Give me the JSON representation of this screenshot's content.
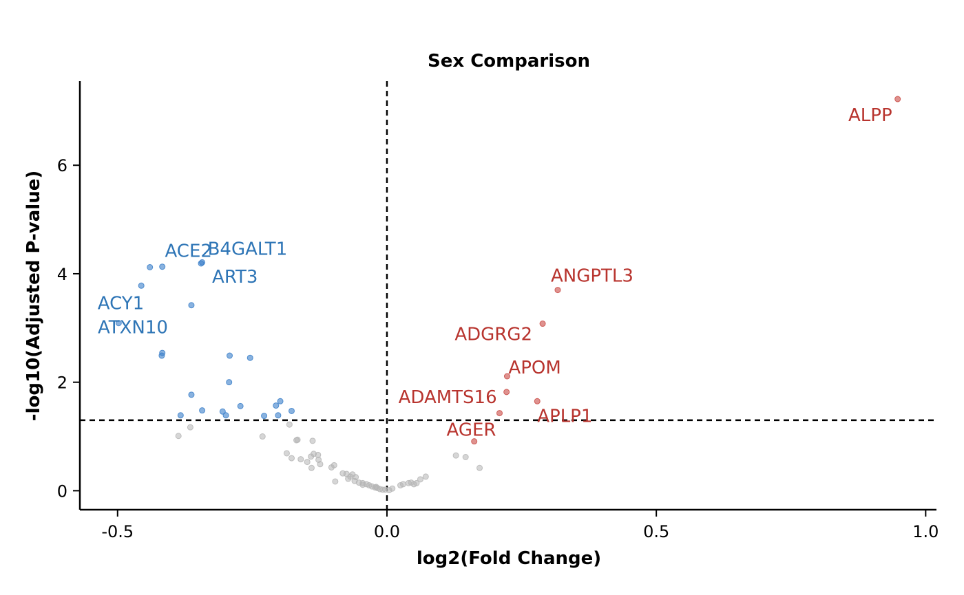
{
  "chart_data": {
    "type": "scatter",
    "title": "Sex Comparison",
    "xlabel": "log2(Fold Change)",
    "ylabel": "-log10(Adjusted P-value)",
    "xlim": [
      -0.57,
      1.02
    ],
    "ylim": [
      -0.35,
      7.55
    ],
    "xticks": [
      -0.5,
      0.0,
      0.5,
      1.0
    ],
    "xtick_labels": [
      "-0.5",
      "0.0",
      "0.5",
      "1.0"
    ],
    "yticks": [
      0,
      2,
      4,
      6
    ],
    "ytick_labels": [
      "0",
      "2",
      "4",
      "6"
    ],
    "thresholds": {
      "x": 0.0,
      "y": 1.3
    },
    "colors": {
      "down": "#3a7fc9",
      "up": "#c94a44",
      "ns": "#b5b5b5",
      "down_label": "#2e75b6",
      "up_label": "#b8342e"
    },
    "series": [
      {
        "status": "up",
        "points": [
          [
            0.948,
            7.22
          ],
          [
            0.317,
            3.7
          ],
          [
            0.289,
            3.08
          ],
          [
            0.223,
            2.11
          ],
          [
            0.222,
            1.82
          ],
          [
            0.279,
            1.65
          ],
          [
            0.209,
            1.43
          ],
          [
            0.162,
            0.91
          ]
        ]
      },
      {
        "status": "down",
        "points": [
          [
            -0.44,
            4.12
          ],
          [
            -0.417,
            4.13
          ],
          [
            -0.343,
            4.21
          ],
          [
            -0.345,
            4.19
          ],
          [
            -0.456,
            3.78
          ],
          [
            -0.363,
            3.42
          ],
          [
            -0.498,
            3.09
          ],
          [
            -0.417,
            2.54
          ],
          [
            -0.418,
            2.49
          ],
          [
            -0.292,
            2.49
          ],
          [
            -0.254,
            2.45
          ],
          [
            -0.293,
            2.0
          ],
          [
            -0.363,
            1.77
          ],
          [
            -0.198,
            1.65
          ],
          [
            -0.206,
            1.57
          ],
          [
            -0.272,
            1.56
          ],
          [
            -0.343,
            1.48
          ],
          [
            -0.177,
            1.47
          ],
          [
            -0.305,
            1.46
          ],
          [
            -0.383,
            1.39
          ],
          [
            -0.299,
            1.39
          ],
          [
            -0.228,
            1.38
          ],
          [
            -0.202,
            1.39
          ]
        ]
      },
      {
        "status": "ns",
        "points": [
          [
            -0.365,
            1.17
          ],
          [
            -0.387,
            1.01
          ],
          [
            -0.231,
            1.0
          ],
          [
            -0.181,
            1.22
          ],
          [
            -0.168,
            0.93
          ],
          [
            -0.166,
            0.94
          ],
          [
            -0.138,
            0.92
          ],
          [
            -0.186,
            0.69
          ],
          [
            -0.16,
            0.58
          ],
          [
            -0.141,
            0.63
          ],
          [
            -0.136,
            0.68
          ],
          [
            -0.128,
            0.66
          ],
          [
            -0.127,
            0.57
          ],
          [
            -0.124,
            0.49
          ],
          [
            -0.14,
            0.42
          ],
          [
            -0.103,
            0.43
          ],
          [
            -0.098,
            0.47
          ],
          [
            -0.148,
            0.53
          ],
          [
            -0.177,
            0.6
          ],
          [
            -0.082,
            0.32
          ],
          [
            -0.075,
            0.31
          ],
          [
            -0.068,
            0.26
          ],
          [
            -0.058,
            0.25
          ],
          [
            -0.06,
            0.18
          ],
          [
            -0.052,
            0.15
          ],
          [
            -0.045,
            0.14
          ],
          [
            -0.045,
            0.11
          ],
          [
            -0.038,
            0.12
          ],
          [
            -0.033,
            0.1
          ],
          [
            -0.028,
            0.08
          ],
          [
            -0.022,
            0.06
          ],
          [
            -0.018,
            0.05
          ],
          [
            -0.013,
            0.03
          ],
          [
            -0.008,
            0.02
          ],
          [
            -0.003,
            0.02
          ],
          [
            0.004,
            0.01
          ],
          [
            0.01,
            0.04
          ],
          [
            -0.096,
            0.17
          ],
          [
            -0.072,
            0.22
          ],
          [
            -0.02,
            0.07
          ],
          [
            0.03,
            0.12
          ],
          [
            0.04,
            0.14
          ],
          [
            0.045,
            0.15
          ],
          [
            0.05,
            0.12
          ],
          [
            0.055,
            0.14
          ],
          [
            0.062,
            0.21
          ],
          [
            0.072,
            0.26
          ],
          [
            0.128,
            0.65
          ],
          [
            0.146,
            0.62
          ],
          [
            0.172,
            0.42
          ],
          [
            0.025,
            0.1
          ],
          [
            -0.064,
            0.3
          ]
        ]
      }
    ],
    "annotations": [
      {
        "text": "ALPP",
        "x": 0.948,
        "y": 7.22,
        "status": "up"
      },
      {
        "text": "ANGPTL3",
        "x": 0.317,
        "y": 3.7,
        "status": "up"
      },
      {
        "text": "ADGRG2",
        "x": 0.289,
        "y": 3.08,
        "status": "up"
      },
      {
        "text": "APOM",
        "x": 0.223,
        "y": 2.11,
        "status": "up"
      },
      {
        "text": "ADAMTS16",
        "x": 0.222,
        "y": 1.82,
        "status": "up"
      },
      {
        "text": "APLP1",
        "x": 0.279,
        "y": 1.65,
        "status": "up"
      },
      {
        "text": "AGER",
        "x": 0.209,
        "y": 1.43,
        "status": "up"
      },
      {
        "text": "ACE2",
        "x": -0.417,
        "y": 4.13,
        "status": "down"
      },
      {
        "text": "B4GALT1",
        "x": -0.343,
        "y": 4.21,
        "status": "down"
      },
      {
        "text": "ACY1",
        "x": -0.456,
        "y": 3.78,
        "status": "down"
      },
      {
        "text": "ART3",
        "x": -0.345,
        "y": 4.19,
        "status": "down"
      },
      {
        "text": "ATXN10",
        "x": -0.363,
        "y": 3.42,
        "status": "down"
      }
    ]
  }
}
